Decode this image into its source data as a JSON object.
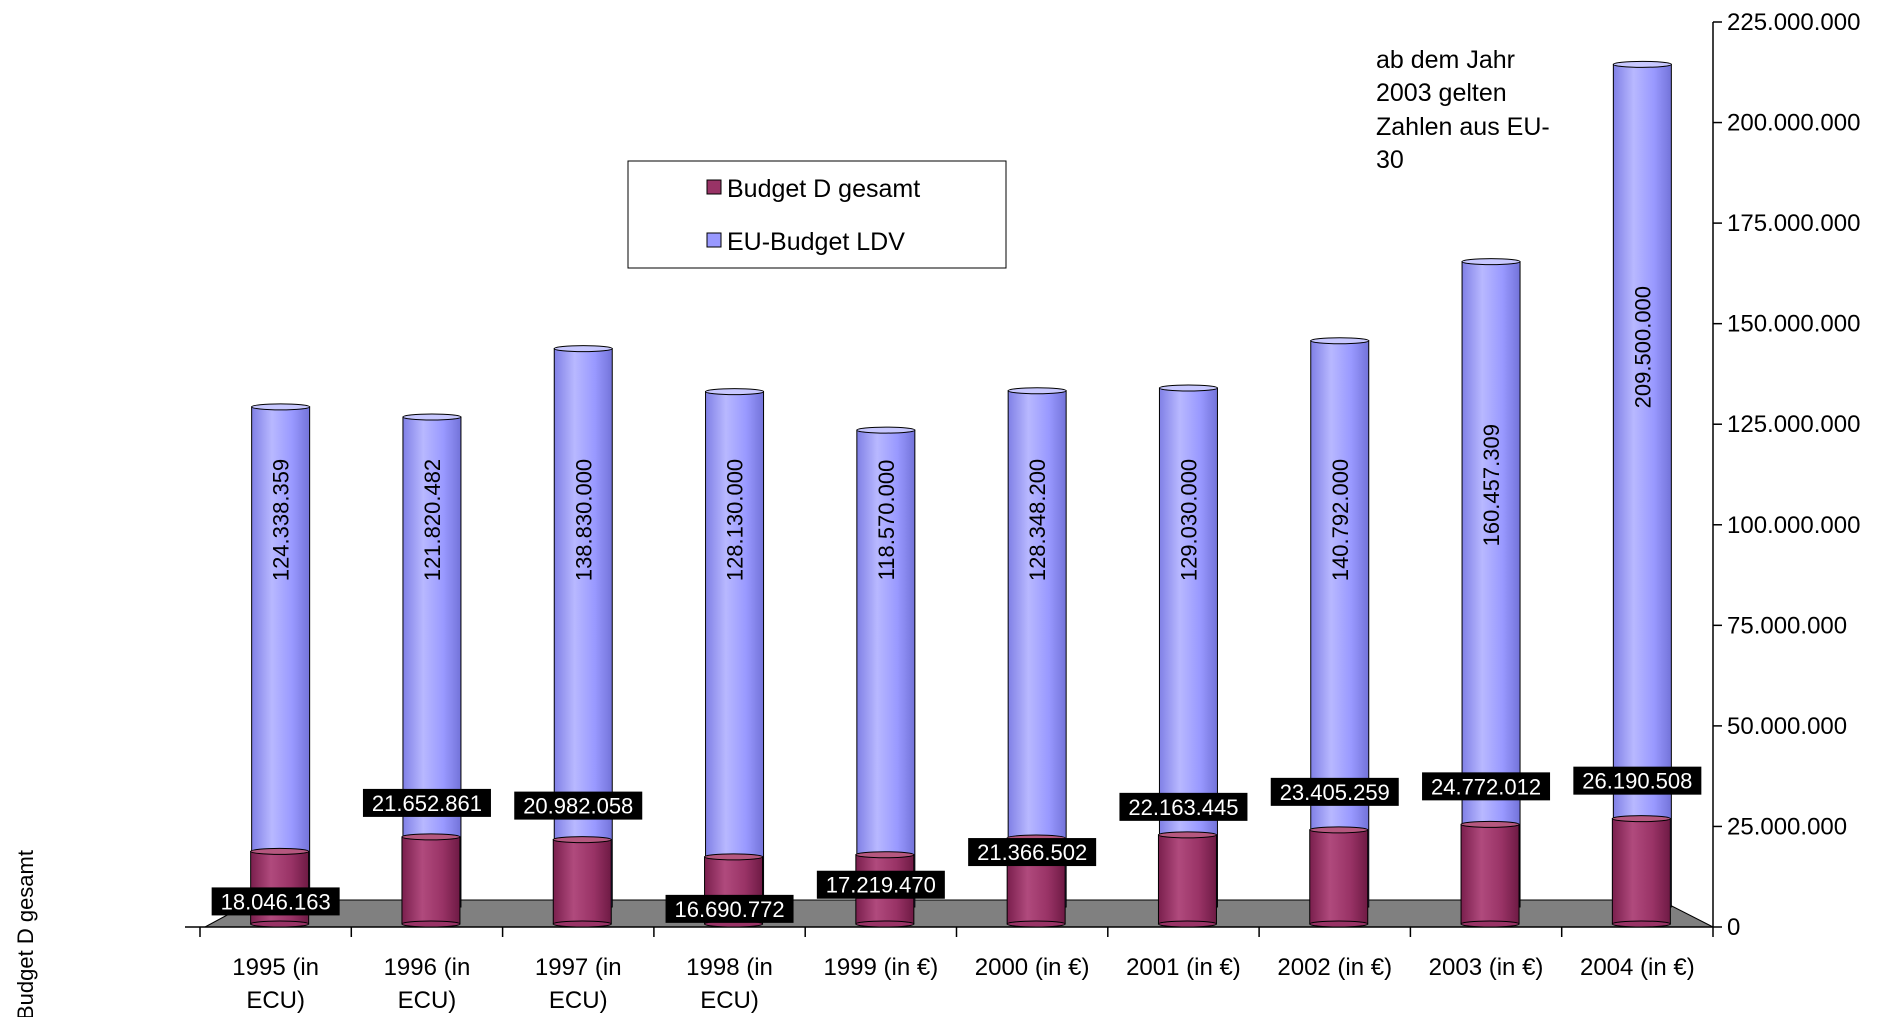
{
  "chart_data": {
    "type": "bar",
    "categories": [
      "1995 (in ECU)",
      "1996 (in ECU)",
      "1997 (in ECU)",
      "1998 (in ECU)",
      "1999 (in €)",
      "2000 (in €)",
      "2001 (in €)",
      "2002 (in €)",
      "2003 (in €)",
      "2004 (in €)"
    ],
    "series": [
      {
        "name": "Budget D gesamt",
        "color": "#993366",
        "values": [
          18046163,
          21652861,
          20982058,
          16690772,
          17219470,
          21366502,
          22163445,
          23405259,
          24772012,
          26190508
        ],
        "labels": [
          "18.046.163",
          "21.652.861",
          "20.982.058",
          "16.690.772",
          "17.219.470",
          "21.366.502",
          "22.163.445",
          "23.405.259",
          "24.772.012",
          "26.190.508"
        ]
      },
      {
        "name": "EU-Budget LDV",
        "color": "#9999ff",
        "values": [
          124338359,
          121820482,
          138830000,
          128130000,
          118570000,
          128348200,
          129030000,
          140792000,
          160457309,
          209500000
        ],
        "labels": [
          "124.338.359",
          "121.820.482",
          "138.830.000",
          "128.130.000",
          "118.570.000",
          "128.348.200",
          "129.030.000",
          "140.792.000",
          "160.457.309",
          "209.500.000"
        ]
      }
    ],
    "x_label_lines": [
      [
        "1995 (in",
        "ECU)"
      ],
      [
        "1996 (in",
        "ECU)"
      ],
      [
        "1997 (in",
        "ECU)"
      ],
      [
        "1998 (in",
        "ECU)"
      ],
      [
        "1999 (in €)"
      ],
      [
        "2000 (in €)"
      ],
      [
        "2001 (in €)"
      ],
      [
        "2002 (in €)"
      ],
      [
        "2003 (in €)"
      ],
      [
        "2004 (in €)"
      ]
    ],
    "ylim": [
      0,
      225000000
    ],
    "yticks": [
      0,
      25000000,
      50000000,
      75000000,
      100000000,
      125000000,
      150000000,
      175000000,
      200000000,
      225000000
    ],
    "ytick_labels": [
      "0",
      "25.000.000",
      "50.000.000",
      "75.000.000",
      "100.000.000",
      "125.000.000",
      "150.000.000",
      "175.000.000",
      "200.000.000",
      "225.000.000"
    ],
    "y_axis_side": "right",
    "ylabel": "Budget D gesamt",
    "legend": {
      "placement": "top-center",
      "entries": [
        "Budget D gesamt",
        "EU-Budget LDV"
      ]
    },
    "annotation": [
      "ab dem Jahr",
      "2003 gelten",
      "Zahlen aus EU-",
      "30"
    ],
    "grid": false
  }
}
